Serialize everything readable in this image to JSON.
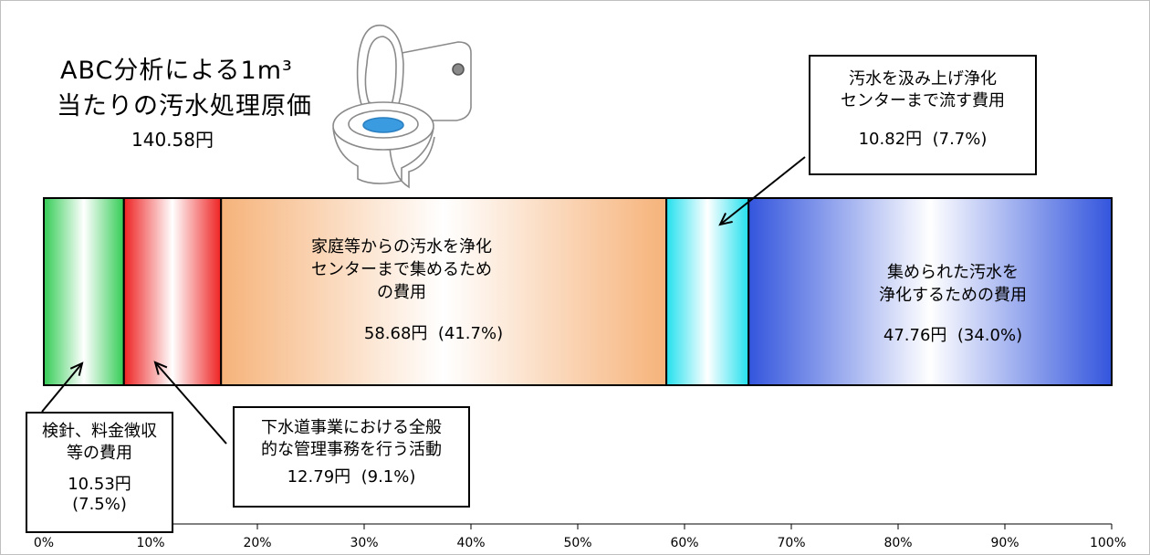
{
  "heading": {
    "title_line1": "ABC分析による1m³",
    "title_line2": "当たりの汚水処理原価",
    "total": "140.58円"
  },
  "illustration": {
    "icon": "toilet-icon"
  },
  "chart_data": {
    "type": "bar",
    "orientation": "horizontal-stacked-100%",
    "total_value": 140.58,
    "unit": "円",
    "segments": [
      {
        "lines": [
          "検針、料金徴収",
          "等の費用"
        ],
        "amount": "10.53円",
        "share": "(7.5%)",
        "value": 10.53,
        "percent": 7.5,
        "color": "#33cc55"
      },
      {
        "lines": [
          "下水道事業における全般",
          "的な管理事務を行う活動"
        ],
        "amount": "12.79円",
        "share": "(9.1%)",
        "value": 12.79,
        "percent": 9.1,
        "color": "#ee2222"
      },
      {
        "lines": [
          "家庭等からの汚水を浄化",
          "センターまで集めるため",
          "の費用"
        ],
        "amount": "58.68円",
        "share": "(41.7%)",
        "value": 58.68,
        "percent": 41.7,
        "color": "#f6b37a"
      },
      {
        "lines": [
          "汚水を汲み上げ浄化",
          "センターまで流す費用"
        ],
        "amount": "10.82円",
        "share": "(7.7%)",
        "value": 10.82,
        "percent": 7.7,
        "color": "#22e0ee"
      },
      {
        "lines": [
          "集められた汚水を",
          "浄化するための費用"
        ],
        "amount": "47.76円",
        "share": "(34.0%)",
        "value": 47.76,
        "percent": 34.0,
        "color": "#3355dd"
      }
    ],
    "x_ticks": [
      "0%",
      "10%",
      "20%",
      "30%",
      "40%",
      "50%",
      "60%",
      "70%",
      "80%",
      "90%",
      "100%"
    ],
    "xlim": [
      0,
      100
    ],
    "grid": false,
    "legend": "none"
  }
}
